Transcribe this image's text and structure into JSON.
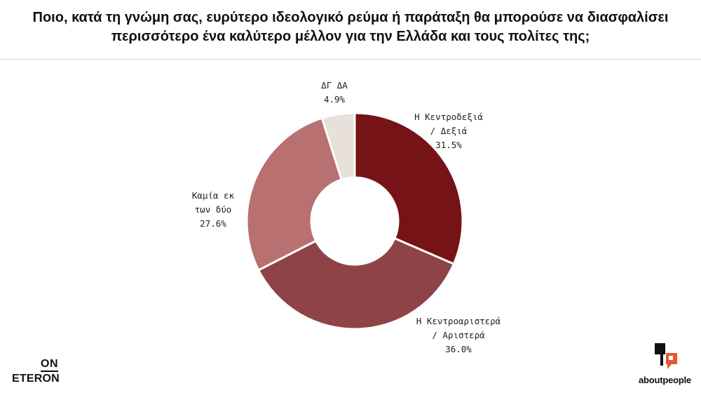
{
  "header": {
    "title_line1": "Ποιο, κατά τη γνώμη σας, ευρύτερο ιδεολογικό ρεύμα ή παράταξη θα μπορούσε να διασφαλίσει",
    "title_line2": "περισσότερο ένα καλύτερο μέλλον για την Ελλάδα και τους πολίτες της;"
  },
  "chart_data": {
    "type": "pie",
    "variant": "donut",
    "slices": [
      {
        "label_lines": [
          "Η Κεντροδεξιά",
          "/ Δεξιά"
        ],
        "value": 31.5,
        "value_label": "31.5%",
        "color": "#761316"
      },
      {
        "label_lines": [
          "Η Κεντροαριστερά",
          "/ Αριστερά"
        ],
        "value": 36.0,
        "value_label": "36.0%",
        "color": "#8e4347"
      },
      {
        "label_lines": [
          "Καμία εκ",
          "των δύο"
        ],
        "value": 27.6,
        "value_label": "27.6%",
        "color": "#b87070"
      },
      {
        "label_lines": [
          "ΔΓ ΔΑ"
        ],
        "value": 4.9,
        "value_label": "4.9%",
        "color": "#e8e0da"
      }
    ],
    "start": "top",
    "direction": "clockwise",
    "legend": "none"
  },
  "branding": {
    "left_logo_top": "ON",
    "left_logo_bottom": "ETERON",
    "right_logo": "aboutpeople",
    "right_logo_accent": "#e4572e"
  }
}
